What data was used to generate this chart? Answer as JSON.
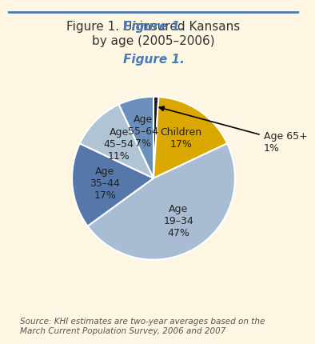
{
  "slices": [
    {
      "label": "Age 65+\n1%",
      "value": 1,
      "color": "#1c1c1c",
      "outside": true
    },
    {
      "label": "Children\n17%",
      "value": 17,
      "color": "#daa800",
      "outside": false
    },
    {
      "label": "Age\n19–34\n47%",
      "value": 47,
      "color": "#a8bdd4",
      "outside": false
    },
    {
      "label": "Age\n35–44\n17%",
      "value": 17,
      "color": "#5577aa",
      "outside": false
    },
    {
      "label": "Age\n45–54\n11%",
      "value": 11,
      "color": "#b0c4d4",
      "outside": false
    },
    {
      "label": "Age\n55–64\n7%",
      "value": 7,
      "color": "#6a8fbb",
      "outside": false
    }
  ],
  "startangle": 90,
  "counterclock": false,
  "background_color": "#fdf6e3",
  "title_italic": "Figure 1.",
  "title_italic_color": "#4a7ab5",
  "title_rest": " Uninsured Kansans\nby age (2005–2006)",
  "title_color": "#333333",
  "title_fontsize": 11,
  "source_text": "Source: KHI estimates are two-year averages based on the\nMarch Current Population Survey, 2006 and 2007",
  "source_fontsize": 7.5,
  "source_color": "#555555",
  "label_fontsize": 9,
  "label_color": "#222222",
  "edge_color": "white",
  "edge_lw": 1.5
}
